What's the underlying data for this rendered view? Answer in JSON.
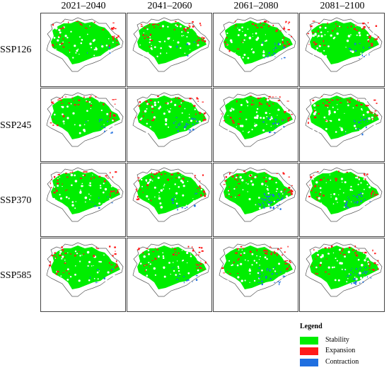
{
  "columns": [
    "2021–2040",
    "2041–2060",
    "2061–2080",
    "2081–2100"
  ],
  "rows": [
    "SSP126",
    "SSP245",
    "SSP370",
    "SSP585"
  ],
  "legend": {
    "title": "Legend",
    "items": [
      {
        "label": "Stability",
        "color": "#00ee00"
      },
      {
        "label": "Expansion",
        "color": "#ff1a1a"
      },
      {
        "label": "Contraction",
        "color": "#1f6fe0"
      }
    ]
  },
  "panels": [
    {
      "row": "SSP126",
      "period": "2021–2040",
      "contraction": 0.05
    },
    {
      "row": "SSP126",
      "period": "2041–2060",
      "contraction": 0.05
    },
    {
      "row": "SSP126",
      "period": "2061–2080",
      "contraction": 0.3
    },
    {
      "row": "SSP126",
      "period": "2081–2100",
      "contraction": 0.2
    },
    {
      "row": "SSP245",
      "period": "2021–2040",
      "contraction": 0.15
    },
    {
      "row": "SSP245",
      "period": "2041–2060",
      "contraction": 0.35
    },
    {
      "row": "SSP245",
      "period": "2061–2080",
      "contraction": 0.25
    },
    {
      "row": "SSP245",
      "period": "2081–2100",
      "contraction": 0.25
    },
    {
      "row": "SSP370",
      "period": "2021–2040",
      "contraction": 0.1
    },
    {
      "row": "SSP370",
      "period": "2041–2060",
      "contraction": 0.2
    },
    {
      "row": "SSP370",
      "period": "2061–2080",
      "contraction": 0.6
    },
    {
      "row": "SSP370",
      "period": "2081–2100",
      "contraction": 0.35
    },
    {
      "row": "SSP585",
      "period": "2021–2040",
      "contraction": 0.1
    },
    {
      "row": "SSP585",
      "period": "2041–2060",
      "contraction": 0.15
    },
    {
      "row": "SSP585",
      "period": "2061–2080",
      "contraction": 0.45
    },
    {
      "row": "SSP585",
      "period": "2081–2100",
      "contraction": 0.45
    }
  ]
}
